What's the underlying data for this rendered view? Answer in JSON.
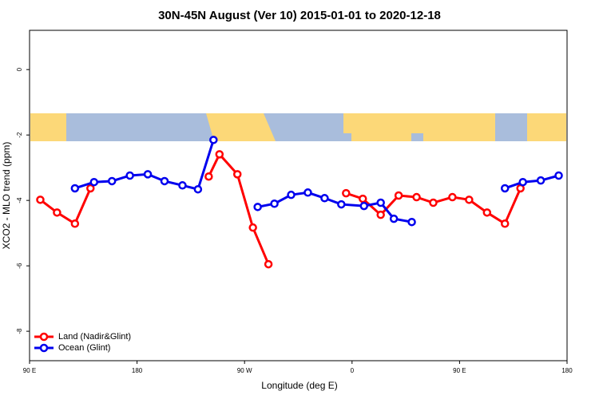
{
  "chart_data": {
    "type": "line",
    "title": "30N-45N August (Ver 10)   2015-01-01 to 2020-12-18",
    "x_label": "Longitude (deg E)",
    "y_label": "XCO2 - MLO trend (ppm)",
    "xlim": [
      90,
      540
    ],
    "ylim": [
      -8.9,
      1.2
    ],
    "xticks": [
      {
        "value": 90,
        "label": "90 E"
      },
      180,
      {
        "value": 270,
        "label": "90 W"
      },
      {
        "value": 360,
        "label": "0"
      },
      {
        "value": 450,
        "label": "90 E"
      },
      {
        "value": 540,
        "label": "180"
      }
    ],
    "yticks": [
      0,
      -2,
      -4,
      -6,
      -8
    ],
    "legend": "bottom-left",
    "series": [
      {
        "name": "Land (Nadir&Glint)",
        "color": "#ff0000",
        "x": [
          99,
          113,
          128,
          141,
          null,
          240,
          249,
          264,
          277,
          290,
          null,
          355,
          369,
          384,
          399,
          414,
          428,
          444,
          458,
          473,
          488,
          501
        ],
        "values": [
          -3.98,
          -4.37,
          -4.71,
          -3.63,
          null,
          -3.27,
          -2.59,
          -3.2,
          -4.83,
          -5.95,
          null,
          -3.78,
          -3.95,
          -4.44,
          -3.85,
          -3.9,
          -4.07,
          -3.9,
          -3.98,
          -4.37,
          -4.71,
          -3.63
        ]
      },
      {
        "name": "Ocean (Glint)",
        "color": "#0000ee",
        "x": [
          128,
          144,
          159,
          174,
          189,
          203,
          218,
          231,
          244,
          null,
          281,
          295,
          309,
          323,
          337,
          351,
          370,
          384,
          395,
          410,
          null,
          488,
          503,
          518,
          533
        ],
        "values": [
          -3.63,
          -3.44,
          -3.41,
          -3.24,
          -3.2,
          -3.41,
          -3.54,
          -3.66,
          -2.15,
          null,
          -4.2,
          -4.1,
          -3.83,
          -3.76,
          -3.93,
          -4.12,
          -4.17,
          -4.07,
          -4.56,
          -4.66,
          null,
          -3.63,
          -3.44,
          -3.39,
          -3.24
        ]
      }
    ]
  }
}
